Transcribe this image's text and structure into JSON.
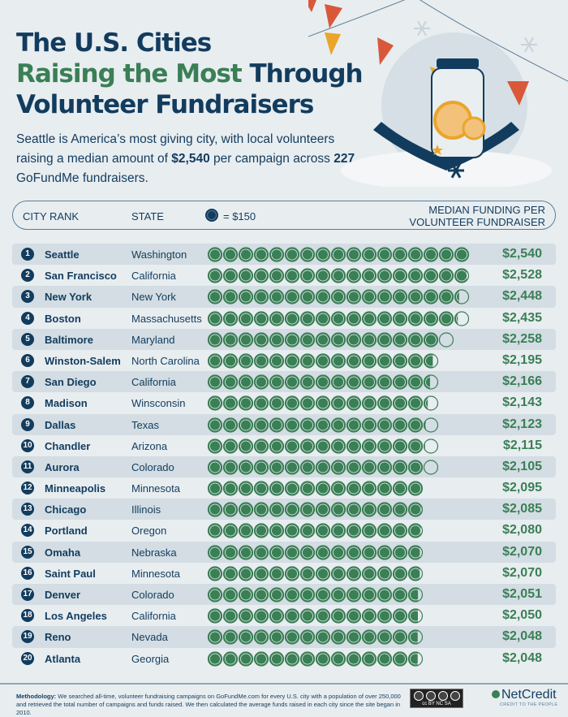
{
  "title": {
    "line1": "The U.S. Cities",
    "line2_green": "Raising the Most",
    "line2_rest": "Through",
    "line3": "Volunteer Fundraisers"
  },
  "subtitle": {
    "part1": "Seattle is America’s most giving city, with local volunteers raising a median amount of ",
    "amount": "$2,540",
    "part2": " per campaign across ",
    "count": "227",
    "part3": " GoFundMe fundraisers."
  },
  "header": {
    "city_rank": "CITY RANK",
    "state": "STATE",
    "legend": "= $150",
    "median_line1": "MEDIAN FUNDING PER",
    "median_line2": "VOLUNTEER FUNDRAISER"
  },
  "colors": {
    "navy": "#123c5e",
    "green": "#3a7f55",
    "orange": "#d9583a",
    "yellow": "#eaa52a"
  },
  "chart_data": {
    "type": "bar",
    "unit_per_icon": 150,
    "categories": [
      "Seattle",
      "San Francisco",
      "New York",
      "Boston",
      "Baltimore",
      "Winston-Salem",
      "San Diego",
      "Madison",
      "Dallas",
      "Chandler",
      "Aurora",
      "Minneapolis",
      "Chicago",
      "Portland",
      "Omaha",
      "Saint Paul",
      "Denver",
      "Los Angeles",
      "Reno",
      "Atlanta"
    ],
    "states": [
      "Washington",
      "California",
      "New York",
      "Massachusetts",
      "Maryland",
      "North Carolina",
      "California",
      "Winsconsin",
      "Texas",
      "Arizona",
      "Colorado",
      "Minnesota",
      "Illinois",
      "Oregon",
      "Nebraska",
      "Minnesota",
      "Colorado",
      "California",
      "Nevada",
      "Georgia"
    ],
    "values": [
      2540,
      2528,
      2448,
      2435,
      2258,
      2195,
      2166,
      2143,
      2123,
      2115,
      2105,
      2095,
      2085,
      2080,
      2070,
      2070,
      2051,
      2050,
      2048,
      2048
    ],
    "labels": [
      "$2,540",
      "$2,528",
      "$2,448",
      "$2,435",
      "$2,258",
      "$2,195",
      "$2,166",
      "$2,143",
      "$2,123",
      "$2,115",
      "$2,105",
      "$2,095",
      "$2,085",
      "$2,080",
      "$2,070",
      "$2,070",
      "$2,051",
      "$2,050",
      "$2,048",
      "$2,048"
    ]
  },
  "footer": {
    "methodology_label": "Methodology:",
    "methodology": " We searched all-time, volunteer fundraising campaigns on GoFundMe.com for every U.S. city with a population of over 250,000 and retrieved the total number of campaigns and funds raised. We then calculated the average funds raised in each city since the site began in 2010.",
    "license": "cc BY NC SA",
    "brand": "NetCredit",
    "tagline": "CREDIT TO THE PEOPLE"
  }
}
